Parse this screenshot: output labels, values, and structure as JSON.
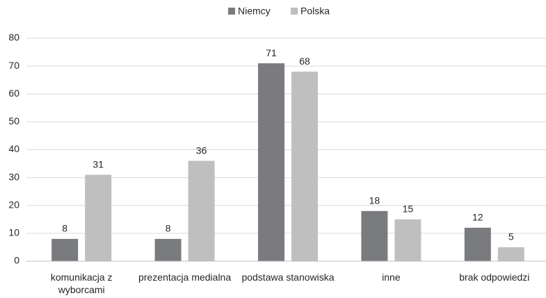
{
  "chart_data": {
    "type": "bar",
    "categories": [
      "komunikacja z wyborcami",
      "prezentacja medialna",
      "podstawa stanowiska",
      "inne",
      "brak odpowiedzi"
    ],
    "series": [
      {
        "name": "Niemcy",
        "color": "#7a7b7e",
        "values": [
          8,
          8,
          71,
          18,
          12
        ]
      },
      {
        "name": "Polska",
        "color": "#bfbfbf",
        "values": [
          31,
          36,
          68,
          15,
          5
        ]
      }
    ],
    "ylim": [
      0,
      80
    ],
    "yticks": [
      0,
      10,
      20,
      30,
      40,
      50,
      60,
      70,
      80
    ],
    "grid": true,
    "legend": "top"
  }
}
